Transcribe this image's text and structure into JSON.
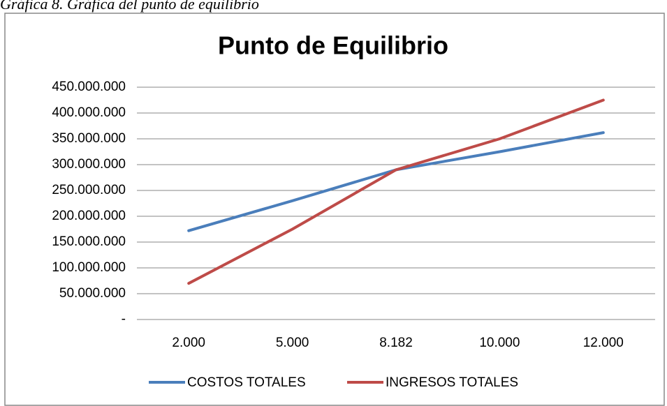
{
  "caption": "Gráfica 8. Gráfica del punto de equilibrio",
  "chart_data": {
    "type": "line",
    "title": "Punto de Equilibrio",
    "categories": [
      "2.000",
      "5.000",
      "8.182",
      "10.000",
      "12.000"
    ],
    "series": [
      {
        "name": "COSTOS TOTALES",
        "color": "#4a7ebb",
        "values": [
          172000000,
          230000000,
          290000000,
          325000000,
          362000000
        ]
      },
      {
        "name": "INGRESOS TOTALES",
        "color": "#be4b48",
        "values": [
          70000000,
          175000000,
          290000000,
          350000000,
          425000000
        ]
      }
    ],
    "ylim": [
      0,
      450000000
    ],
    "yticks": [
      {
        "value": 0,
        "label": "-"
      },
      {
        "value": 50000000,
        "label": "50.000.000"
      },
      {
        "value": 100000000,
        "label": "100.000.000"
      },
      {
        "value": 150000000,
        "label": "150.000.000"
      },
      {
        "value": 200000000,
        "label": "200.000.000"
      },
      {
        "value": 250000000,
        "label": "250.000.000"
      },
      {
        "value": 300000000,
        "label": "300.000.000"
      },
      {
        "value": 350000000,
        "label": "350.000.000"
      },
      {
        "value": 400000000,
        "label": "400.000.000"
      },
      {
        "value": 450000000,
        "label": "450.000.000"
      }
    ],
    "grid": true,
    "legend": "bottom"
  }
}
